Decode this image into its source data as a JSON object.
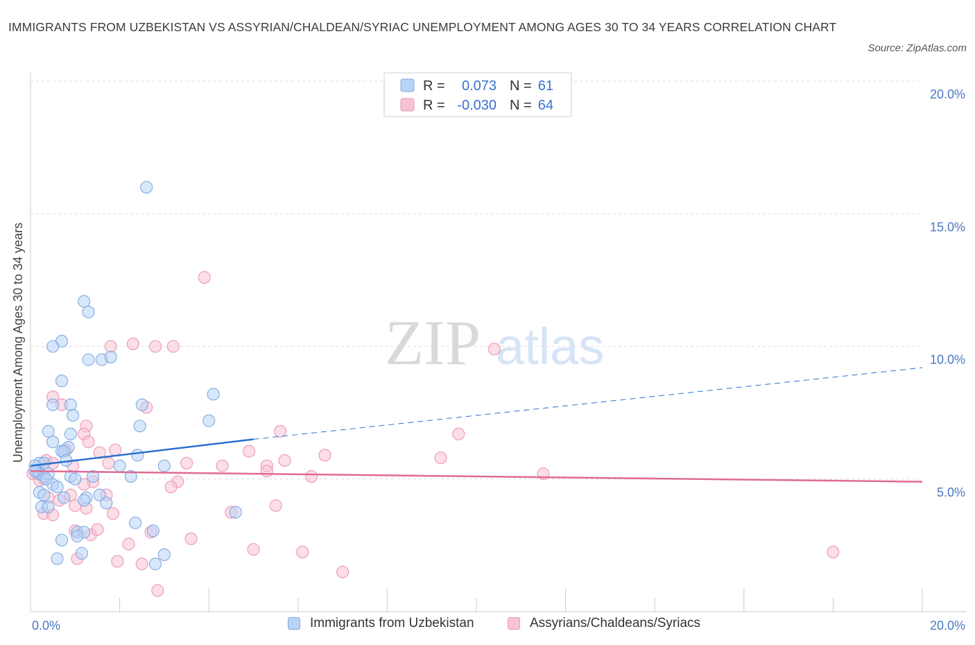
{
  "title": "IMMIGRANTS FROM UZBEKISTAN VS ASSYRIAN/CHALDEAN/SYRIAC UNEMPLOYMENT AMONG AGES 30 TO 34 YEARS CORRELATION CHART",
  "source": "Source: ZipAtlas.com",
  "watermark": {
    "zip": "ZIP",
    "atlas": "atlas"
  },
  "colors": {
    "blue_fill": "#b8d3f5",
    "blue_stroke": "#7fa9e0",
    "blue_line": "#2a6fd0",
    "pink_fill": "#f7c3d3",
    "pink_stroke": "#eb97b4",
    "pink_line": "#e06a95",
    "grid": "#dddddd",
    "tick_text": "#4a78c2"
  },
  "legend": {
    "rows": [
      {
        "r_label": "R =",
        "r_value": "0.073",
        "n_label": "N =",
        "n_value": "61"
      },
      {
        "r_label": "R =",
        "r_value": "-0.030",
        "n_label": "N =",
        "n_value": "64"
      }
    ]
  },
  "chart_data": {
    "type": "scatter",
    "title": "IMMIGRANTS FROM UZBEKISTAN VS ASSYRIAN/CHALDEAN/SYRIAC UNEMPLOYMENT AMONG AGES 30 TO 34 YEARS CORRELATION CHART",
    "xlabel": "",
    "ylabel": "Unemployment Among Ages 30 to 34 years",
    "xlim": [
      0,
      20
    ],
    "ylim": [
      0,
      20
    ],
    "x_tick_labels": [
      "0.0%",
      "20.0%"
    ],
    "y_ticks": [
      5,
      10,
      15,
      20
    ],
    "y_tick_labels": [
      "5.0%",
      "10.0%",
      "15.0%",
      "20.0%"
    ],
    "grid": true,
    "legend_placement": "bottom",
    "series": [
      {
        "name": "Immigrants from Uzbekistan",
        "R": 0.073,
        "N": 61,
        "trend": {
          "x0": 0,
          "y0": 5.5,
          "x1": 5.0,
          "y1": 6.5,
          "dash_to_x": 20,
          "dash_to_y": 9.2
        },
        "points": [
          [
            2.6,
            16.0
          ],
          [
            1.2,
            11.7
          ],
          [
            1.3,
            11.3
          ],
          [
            0.7,
            10.2
          ],
          [
            0.5,
            10.0
          ],
          [
            1.3,
            9.5
          ],
          [
            1.6,
            9.5
          ],
          [
            1.8,
            9.6
          ],
          [
            0.7,
            8.7
          ],
          [
            4.1,
            8.2
          ],
          [
            0.5,
            7.8
          ],
          [
            0.9,
            7.8
          ],
          [
            2.5,
            7.8
          ],
          [
            0.95,
            7.4
          ],
          [
            2.45,
            7.0
          ],
          [
            4.0,
            7.2
          ],
          [
            0.4,
            6.8
          ],
          [
            0.9,
            6.7
          ],
          [
            0.5,
            6.4
          ],
          [
            0.85,
            6.2
          ],
          [
            0.7,
            6.05
          ],
          [
            0.75,
            6.05
          ],
          [
            0.8,
            5.7
          ],
          [
            0.2,
            5.6
          ],
          [
            0.3,
            5.6
          ],
          [
            0.15,
            5.3
          ],
          [
            0.2,
            5.2
          ],
          [
            0.3,
            5.1
          ],
          [
            0.4,
            5.2
          ],
          [
            0.9,
            5.1
          ],
          [
            1.0,
            5.0
          ],
          [
            1.4,
            5.1
          ],
          [
            2.0,
            5.5
          ],
          [
            2.4,
            5.9
          ],
          [
            3.0,
            5.5
          ],
          [
            2.25,
            5.1
          ],
          [
            0.1,
            5.5
          ],
          [
            0.5,
            4.8
          ],
          [
            0.6,
            4.7
          ],
          [
            0.2,
            4.5
          ],
          [
            0.3,
            4.4
          ],
          [
            0.75,
            4.3
          ],
          [
            1.25,
            4.3
          ],
          [
            1.55,
            4.4
          ],
          [
            1.2,
            4.2
          ],
          [
            1.7,
            4.1
          ],
          [
            0.25,
            3.95
          ],
          [
            0.4,
            3.95
          ],
          [
            1.05,
            3.0
          ],
          [
            1.2,
            3.0
          ],
          [
            2.35,
            3.35
          ],
          [
            2.75,
            3.05
          ],
          [
            3.0,
            2.15
          ],
          [
            4.6,
            3.75
          ],
          [
            0.7,
            2.7
          ],
          [
            1.05,
            2.85
          ],
          [
            0.6,
            2.0
          ],
          [
            1.15,
            2.2
          ],
          [
            2.8,
            1.8
          ],
          [
            0.1,
            5.3
          ],
          [
            0.35,
            5.0
          ]
        ]
      },
      {
        "name": "Assyrians/Chaldeans/Syriacs",
        "R": -0.03,
        "N": 64,
        "trend": {
          "x0": 0,
          "y0": 5.3,
          "x1": 20,
          "y1": 4.9
        },
        "points": [
          [
            3.9,
            12.6
          ],
          [
            1.8,
            10.0
          ],
          [
            2.3,
            10.1
          ],
          [
            2.8,
            10.0
          ],
          [
            3.2,
            10.0
          ],
          [
            10.4,
            9.9
          ],
          [
            0.5,
            8.1
          ],
          [
            0.7,
            7.8
          ],
          [
            2.6,
            7.7
          ],
          [
            1.25,
            7.0
          ],
          [
            1.2,
            6.7
          ],
          [
            5.6,
            6.8
          ],
          [
            9.6,
            6.7
          ],
          [
            1.3,
            6.4
          ],
          [
            0.8,
            6.1
          ],
          [
            1.55,
            6.0
          ],
          [
            1.9,
            6.1
          ],
          [
            4.9,
            6.05
          ],
          [
            6.6,
            5.9
          ],
          [
            9.2,
            5.8
          ],
          [
            0.35,
            5.7
          ],
          [
            0.5,
            5.6
          ],
          [
            0.95,
            5.5
          ],
          [
            1.75,
            5.6
          ],
          [
            3.5,
            5.6
          ],
          [
            4.3,
            5.5
          ],
          [
            5.3,
            5.5
          ],
          [
            5.7,
            5.7
          ],
          [
            5.3,
            5.3
          ],
          [
            6.3,
            5.1
          ],
          [
            11.5,
            5.2
          ],
          [
            0.15,
            5.2
          ],
          [
            0.3,
            5.0
          ],
          [
            0.05,
            5.2
          ],
          [
            1.4,
            4.9
          ],
          [
            3.3,
            4.9
          ],
          [
            3.15,
            4.7
          ],
          [
            1.2,
            4.8
          ],
          [
            1.7,
            4.4
          ],
          [
            0.4,
            4.3
          ],
          [
            0.65,
            4.2
          ],
          [
            0.9,
            4.4
          ],
          [
            1.0,
            4.0
          ],
          [
            1.25,
            3.9
          ],
          [
            0.3,
            3.7
          ],
          [
            0.5,
            3.65
          ],
          [
            1.85,
            3.7
          ],
          [
            4.5,
            3.75
          ],
          [
            5.5,
            4.0
          ],
          [
            1.0,
            3.05
          ],
          [
            1.35,
            2.9
          ],
          [
            1.5,
            3.1
          ],
          [
            2.7,
            3.0
          ],
          [
            3.6,
            2.75
          ],
          [
            2.2,
            2.55
          ],
          [
            5.0,
            2.35
          ],
          [
            6.1,
            2.25
          ],
          [
            1.05,
            2.0
          ],
          [
            1.95,
            1.9
          ],
          [
            2.5,
            1.8
          ],
          [
            7.0,
            1.5
          ],
          [
            2.85,
            0.8
          ],
          [
            18.0,
            2.25
          ],
          [
            0.2,
            4.95
          ]
        ]
      }
    ]
  }
}
